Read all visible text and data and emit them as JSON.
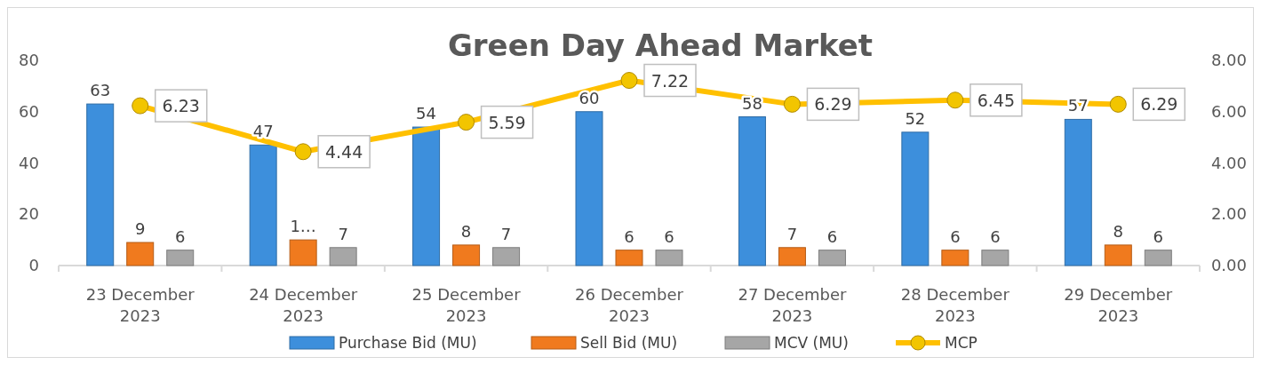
{
  "chart_data": {
    "type": "bar",
    "title": "Green Day Ahead Market",
    "categories": [
      "23 December 2023",
      "24 December 2023",
      "25 December 2023",
      "26 December 2023",
      "27 December 2023",
      "28 December 2023",
      "29 December 2023"
    ],
    "series": [
      {
        "name": "Purchase Bid (MU)",
        "color": "#3d8fdc",
        "values": [
          63,
          47,
          54,
          60,
          58,
          52,
          57
        ],
        "value_labels": [
          "63",
          "47",
          "54",
          "60",
          "58",
          "52",
          "57"
        ]
      },
      {
        "name": "Sell Bid (MU)",
        "color": "#f07a1e",
        "values": [
          9,
          10,
          8,
          6,
          7,
          6,
          8
        ],
        "value_labels": [
          "9",
          "1…",
          "8",
          "6",
          "7",
          "6",
          "8"
        ]
      },
      {
        "name": "MCV (MU)",
        "color": "#a6a6a6",
        "values": [
          6,
          7,
          7,
          6,
          6,
          6,
          6
        ],
        "value_labels": [
          "6",
          "7",
          "7",
          "6",
          "6",
          "6",
          "6"
        ]
      },
      {
        "name": "MCP",
        "type": "line",
        "axis": "y2",
        "color": "#ffc000",
        "values": [
          6.23,
          4.44,
          5.59,
          7.22,
          6.29,
          6.45,
          6.29
        ],
        "value_labels": [
          "6.23",
          "4.44",
          "5.59",
          "7.22",
          "6.29",
          "6.45",
          "6.29"
        ]
      }
    ],
    "ylim": [
      0,
      80
    ],
    "yticks": [
      0,
      20,
      40,
      60,
      80
    ],
    "y2lim": [
      0,
      8
    ],
    "y2ticks": [
      {
        "value": 0,
        "label": "0.00"
      },
      {
        "value": 2,
        "label": "2.00"
      },
      {
        "value": 4,
        "label": "4.00"
      },
      {
        "value": 6,
        "label": "6.00"
      },
      {
        "value": 8,
        "label": "8.00"
      }
    ],
    "grid": false,
    "legend": "bottom",
    "marker": "circle",
    "line_style": "solid"
  }
}
